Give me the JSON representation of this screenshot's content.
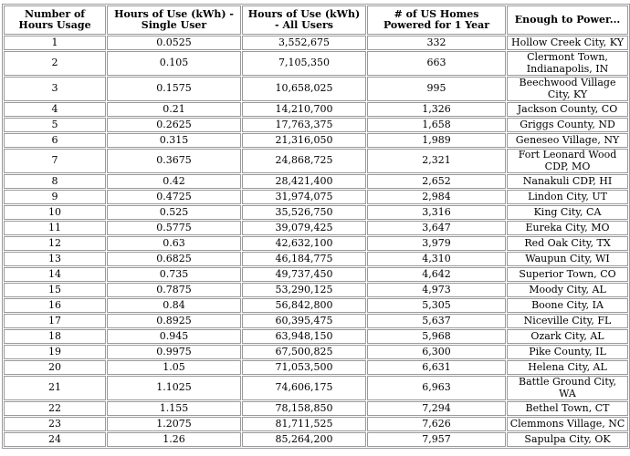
{
  "table": {
    "headers": [
      "Number of Hours Usage",
      "Hours of Use (kWh) - Single User",
      "Hours of Use (kWh) - All Users",
      "# of US Homes Powered for 1 Year",
      "Enough to Power..."
    ],
    "rows": [
      [
        "1",
        "0.0525",
        "3,552,675",
        "332",
        "Hollow Creek City, KY"
      ],
      [
        "2",
        "0.105",
        "7,105,350",
        "663",
        "Clermont Town, Indianapolis, IN"
      ],
      [
        "3",
        "0.1575",
        "10,658,025",
        "995",
        "Beechwood Village City, KY"
      ],
      [
        "4",
        "0.21",
        "14,210,700",
        "1,326",
        "Jackson County, CO"
      ],
      [
        "5",
        "0.2625",
        "17,763,375",
        "1,658",
        "Griggs County, ND"
      ],
      [
        "6",
        "0.315",
        "21,316,050",
        "1,989",
        "Geneseo Village, NY"
      ],
      [
        "7",
        "0.3675",
        "24,868,725",
        "2,321",
        "Fort Leonard Wood CDP, MO"
      ],
      [
        "8",
        "0.42",
        "28,421,400",
        "2,652",
        "Nanakuli CDP, HI"
      ],
      [
        "9",
        "0.4725",
        "31,974,075",
        "2,984",
        "Lindon City, UT"
      ],
      [
        "10",
        "0.525",
        "35,526,750",
        "3,316",
        "King City, CA"
      ],
      [
        "11",
        "0.5775",
        "39,079,425",
        "3,647",
        "Eureka City, MO"
      ],
      [
        "12",
        "0.63",
        "42,632,100",
        "3,979",
        "Red Oak City, TX"
      ],
      [
        "13",
        "0.6825",
        "46,184,775",
        "4,310",
        "Waupun City, WI"
      ],
      [
        "14",
        "0.735",
        "49,737,450",
        "4,642",
        "Superior Town, CO"
      ],
      [
        "15",
        "0.7875",
        "53,290,125",
        "4,973",
        "Moody City, AL"
      ],
      [
        "16",
        "0.84",
        "56,842,800",
        "5,305",
        "Boone City, IA"
      ],
      [
        "17",
        "0.8925",
        "60,395,475",
        "5,637",
        "Niceville City, FL"
      ],
      [
        "18",
        "0.945",
        "63,948,150",
        "5,968",
        "Ozark City, AL"
      ],
      [
        "19",
        "0.9975",
        "67,500,825",
        "6,300",
        "Pike County, IL"
      ],
      [
        "20",
        "1.05",
        "71,053,500",
        "6,631",
        "Helena City, AL"
      ],
      [
        "21",
        "1.1025",
        "74,606,175",
        "6,963",
        "Battle Ground City, WA"
      ],
      [
        "22",
        "1.155",
        "78,158,850",
        "7,294",
        "Bethel Town, CT"
      ],
      [
        "23",
        "1.2075",
        "81,711,525",
        "7,626",
        "Clemmons Village, NC"
      ],
      [
        "24",
        "1.26",
        "85,264,200",
        "7,957",
        "Sapulpa City, OK"
      ]
    ]
  }
}
